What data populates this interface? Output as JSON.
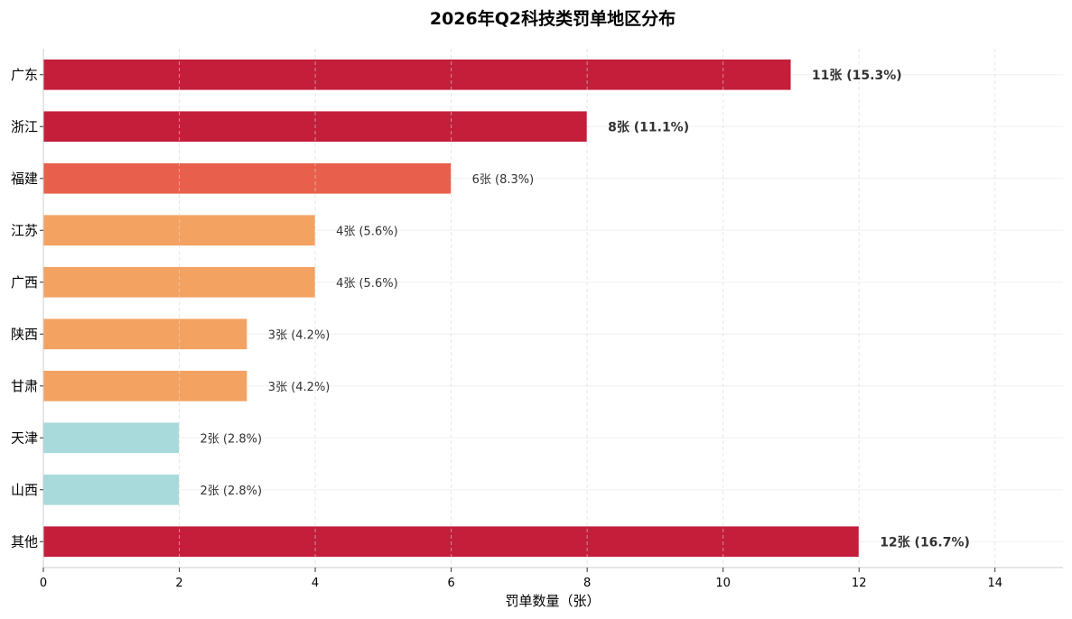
{
  "chart_data": {
    "type": "bar",
    "orientation": "horizontal",
    "title": "2026年Q2科技类罚单地区分布",
    "xlabel": "罚单数量（张）",
    "ylabel": "",
    "xlim": [
      0,
      15
    ],
    "xticks": [
      "0",
      "2",
      "4",
      "6",
      "8",
      "10",
      "12",
      "14"
    ],
    "grid": true,
    "categories": [
      "广东",
      "浙江",
      "福建",
      "江苏",
      "广西",
      "陕西",
      "甘肃",
      "天津",
      "山西",
      "其他"
    ],
    "values": [
      11,
      8,
      6,
      4,
      4,
      3,
      3,
      2,
      2,
      12
    ],
    "data_labels": [
      "11张 (15.3%)",
      "8张 (11.1%)",
      "6张 (8.3%)",
      "4张 (5.6%)",
      "4张 (5.6%)",
      "3张 (4.2%)",
      "3张 (4.2%)",
      "2张 (2.8%)",
      "2张 (2.8%)",
      "12张 (16.7%)"
    ],
    "bar_colors": [
      "#c41e3a",
      "#c41e3a",
      "#e8604c",
      "#f4a261",
      "#f4a261",
      "#f4a261",
      "#f4a261",
      "#a8dadc",
      "#a8dadc",
      "#c41e3a"
    ],
    "highlight": [
      true,
      true,
      false,
      false,
      false,
      false,
      false,
      false,
      false,
      true
    ],
    "highlight_label_color": "#c41e3a",
    "normal_label_color": "#333333"
  }
}
